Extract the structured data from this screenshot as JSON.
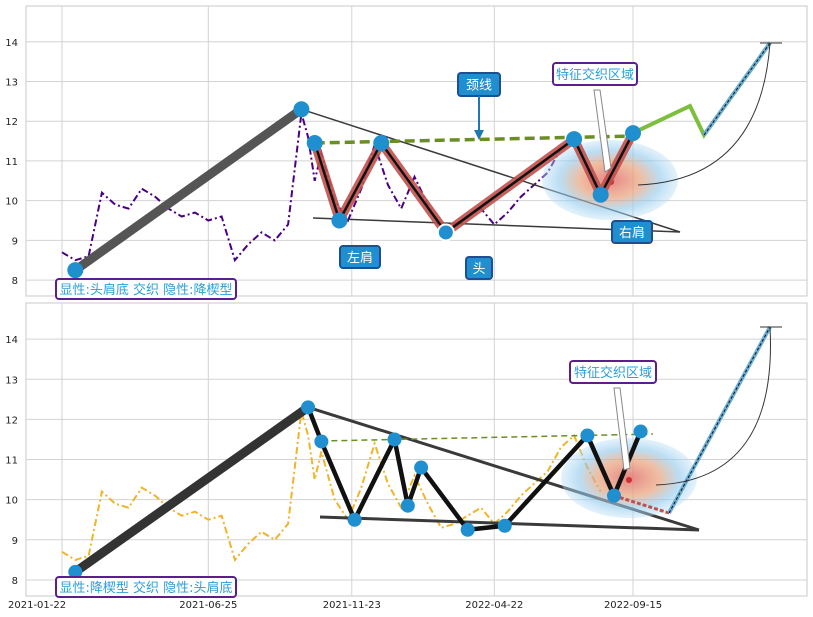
{
  "x_ticks": [
    "2021-01-22",
    "2021-06-25",
    "2021-11-23",
    "2022-04-22",
    "2022-09-15"
  ],
  "y_ticks": [
    8,
    9,
    10,
    11,
    12,
    13,
    14
  ],
  "colors": {
    "blue_dot": "#1f8fd0",
    "red_band": "#c0504d",
    "dark_line": "#3a3a3a",
    "neckline": "#6b8e23",
    "price_top": "#4b0082",
    "price_bottom": "#f0b429",
    "label_border": "#5b1e8c",
    "label_text": "#2b9fd8",
    "callout_bg": "#1f8fd0"
  },
  "chart_data": [
    {
      "type": "line",
      "title": "",
      "ylim": [
        7.6,
        14.9
      ],
      "y_ticks": [
        8,
        9,
        10,
        11,
        12,
        13,
        14
      ],
      "x_tick_labels": [
        "2021-01-22",
        "2021-06-25",
        "2021-11-23",
        "2022-04-22",
        "2022-09-15"
      ],
      "grid": true,
      "series": [
        {
          "style": "dash-dot purple",
          "x": [
            "2021-01-22",
            "2021-02-05",
            "2021-02-19",
            "2021-03-05",
            "2021-03-19",
            "2021-04-02",
            "2021-04-16",
            "2021-04-30",
            "2021-05-14",
            "2021-05-28",
            "2021-06-11",
            "2021-06-25",
            "2021-07-09",
            "2021-07-23",
            "2021-08-06",
            "2021-08-20",
            "2021-09-03",
            "2021-09-17",
            "2021-10-01",
            "2021-10-08",
            "2021-10-15",
            "2021-10-22",
            "2021-11-05",
            "2021-11-19",
            "2021-12-03",
            "2021-12-17",
            "2021-12-31",
            "2022-01-14",
            "2022-01-28",
            "2022-02-11",
            "2022-02-25",
            "2022-03-11",
            "2022-03-25",
            "2022-04-08",
            "2022-04-22",
            "2022-05-06",
            "2022-05-20",
            "2022-06-03",
            "2022-06-17",
            "2022-07-01",
            "2022-07-15",
            "2022-07-29",
            "2022-08-12"
          ],
          "values": [
            8.7,
            8.5,
            8.6,
            10.2,
            9.9,
            9.8,
            10.3,
            10.1,
            9.8,
            9.6,
            9.7,
            9.5,
            9.6,
            8.5,
            8.9,
            9.2,
            9.0,
            9.4,
            12.2,
            11.6,
            10.5,
            11.2,
            10.0,
            9.5,
            10.3,
            11.4,
            10.4,
            9.8,
            10.6,
            9.9,
            9.3,
            9.4,
            9.6,
            9.8,
            9.4,
            9.7,
            10.1,
            10.4,
            10.7,
            11.3,
            11.6,
            10.8,
            10.2
          ]
        }
      ],
      "pattern_points": [
        {
          "x": "2021-02-05",
          "y": 8.25
        },
        {
          "x": "2021-10-01",
          "y": 12.3
        },
        {
          "x": "2021-10-15",
          "y": 11.45
        },
        {
          "x": "2021-11-10",
          "y": 9.5
        },
        {
          "x": "2021-12-24",
          "y": 11.45
        },
        {
          "x": "2022-03-02",
          "y": 9.2
        },
        {
          "x": "2022-07-15",
          "y": 11.55
        },
        {
          "x": "2022-08-12",
          "y": 10.15
        },
        {
          "x": "2022-09-15",
          "y": 11.7
        }
      ],
      "annotations": {
        "label": "显性:头肩底 交织 隐性:降楔型",
        "neckline": "颈线",
        "zone": "特征交织区域",
        "left_shoulder": "左肩",
        "head": "头",
        "right_shoulder": "右肩"
      }
    },
    {
      "type": "line",
      "title": "",
      "ylim": [
        7.6,
        14.9
      ],
      "y_ticks": [
        8,
        9,
        10,
        11,
        12,
        13,
        14
      ],
      "x_tick_labels": [
        "2021-01-22",
        "2021-06-25",
        "2021-11-23",
        "2022-04-22",
        "2022-09-15"
      ],
      "grid": true,
      "series": [
        {
          "style": "dash-dot orange",
          "x": [
            "2021-01-22",
            "2021-02-05",
            "2021-02-19",
            "2021-03-05",
            "2021-03-19",
            "2021-04-02",
            "2021-04-16",
            "2021-04-30",
            "2021-05-14",
            "2021-05-28",
            "2021-06-11",
            "2021-06-25",
            "2021-07-09",
            "2021-07-23",
            "2021-08-06",
            "2021-08-20",
            "2021-09-03",
            "2021-09-17",
            "2021-10-01",
            "2021-10-08",
            "2021-10-15",
            "2021-10-22",
            "2021-11-05",
            "2021-11-19",
            "2021-12-03",
            "2021-12-17",
            "2021-12-31",
            "2022-01-14",
            "2022-01-28",
            "2022-02-11",
            "2022-02-25",
            "2022-03-11",
            "2022-03-25",
            "2022-04-08",
            "2022-04-22",
            "2022-05-06",
            "2022-05-20",
            "2022-06-03",
            "2022-06-17",
            "2022-07-01",
            "2022-07-15",
            "2022-07-29",
            "2022-08-12"
          ],
          "values": [
            8.7,
            8.5,
            8.6,
            10.2,
            9.9,
            9.8,
            10.3,
            10.1,
            9.8,
            9.6,
            9.7,
            9.5,
            9.6,
            8.5,
            8.9,
            9.2,
            9.0,
            9.4,
            12.2,
            11.6,
            10.5,
            11.2,
            10.0,
            9.5,
            10.3,
            11.4,
            10.4,
            9.8,
            10.6,
            9.9,
            9.3,
            9.4,
            9.6,
            9.8,
            9.4,
            9.7,
            10.1,
            10.4,
            10.7,
            11.3,
            11.6,
            10.8,
            10.2
          ]
        }
      ],
      "pattern_points": [
        {
          "x": "2021-02-05",
          "y": 8.2
        },
        {
          "x": "2021-10-08",
          "y": 12.3
        },
        {
          "x": "2021-10-22",
          "y": 11.45
        },
        {
          "x": "2021-11-26",
          "y": 9.5
        },
        {
          "x": "2022-01-07",
          "y": 11.5
        },
        {
          "x": "2022-01-21",
          "y": 9.85
        },
        {
          "x": "2022-02-04",
          "y": 10.8
        },
        {
          "x": "2022-03-25",
          "y": 9.25
        },
        {
          "x": "2022-05-03",
          "y": 9.35
        },
        {
          "x": "2022-07-29",
          "y": 11.6
        },
        {
          "x": "2022-08-26",
          "y": 10.1
        },
        {
          "x": "2022-09-23",
          "y": 11.7
        }
      ],
      "annotations": {
        "label": "显性:降楔型 交织 隐性:头肩底",
        "zone": "特征交织区域"
      }
    }
  ]
}
